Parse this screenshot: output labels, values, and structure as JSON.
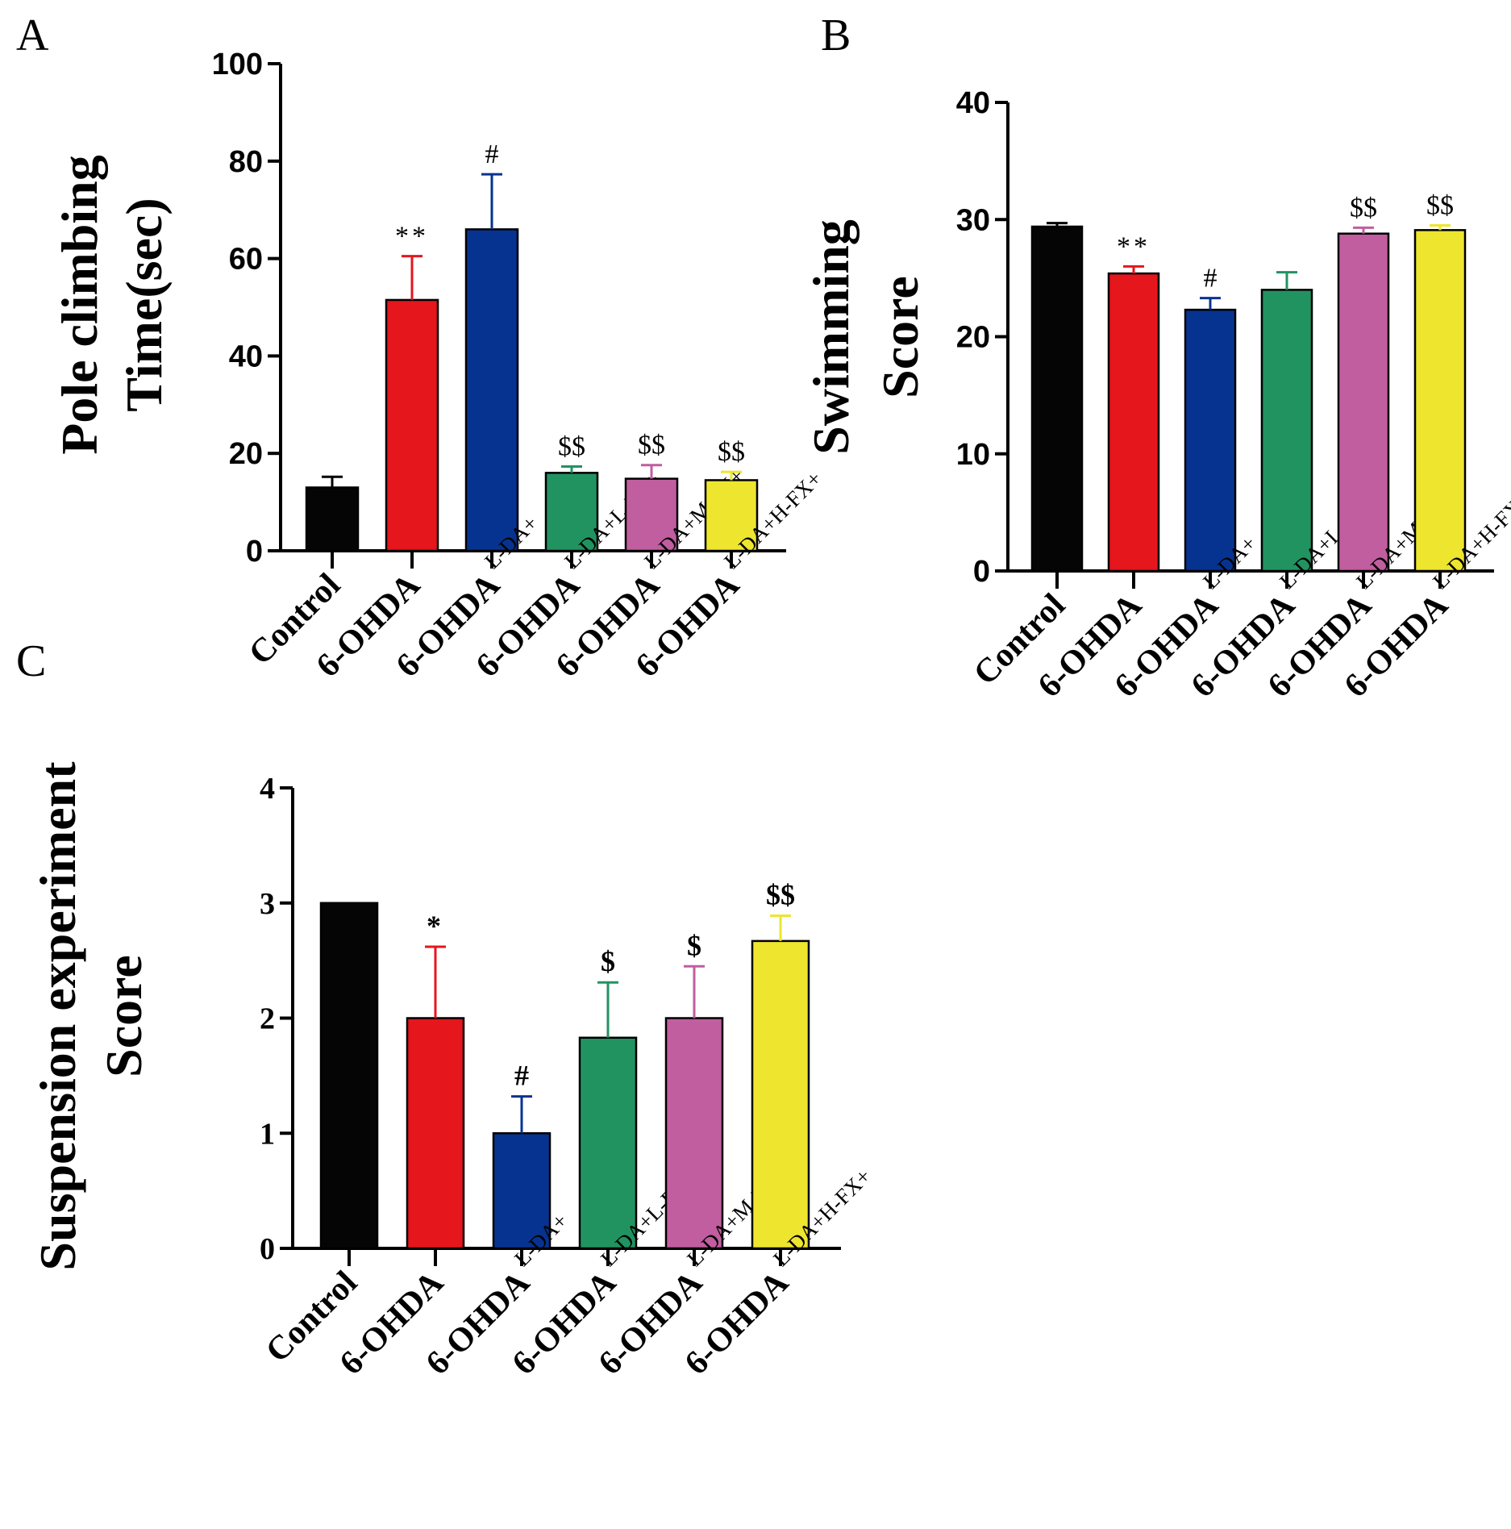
{
  "figure": {
    "panels": [
      "A",
      "B",
      "C"
    ]
  },
  "colors": {
    "Control": "#050505",
    "6-OHDA": "#e5161c",
    "L-DA": "#073390",
    "L-FX": "#219361",
    "M-FX": "#c05e9f",
    "H-FX": "#eee52e"
  },
  "groups": [
    {
      "main": "Control",
      "sup": ""
    },
    {
      "main": "6-OHDA",
      "sup": ""
    },
    {
      "main": "6-OHDA",
      "sup": "L-DA+"
    },
    {
      "main": "6-OHDA",
      "sup": "L-DA+L-FX+"
    },
    {
      "main": "6-OHDA",
      "sup": "L-DA+M-FX+"
    },
    {
      "main": "6-OHDA",
      "sup": "L-DA+H-FX+"
    }
  ],
  "chart_data": [
    {
      "panel": "A",
      "type": "bar",
      "ylabel_lines": [
        "Pole climbing",
        "Time(sec)"
      ],
      "ylim": [
        0,
        100
      ],
      "yticks": [
        0,
        20,
        40,
        60,
        80,
        100
      ],
      "values": [
        13,
        51.5,
        66,
        16,
        14.8,
        14.5
      ],
      "errors": [
        2.2,
        9,
        11.3,
        1.3,
        2.8,
        1.7
      ],
      "annotations": [
        "",
        "**",
        "#",
        "$$",
        "$$",
        "$$"
      ]
    },
    {
      "panel": "B",
      "type": "bar",
      "ylabel_lines": [
        "Swimming",
        "Score"
      ],
      "ylim": [
        0,
        40
      ],
      "yticks": [
        0,
        10,
        20,
        30,
        40
      ],
      "values": [
        29.4,
        25.4,
        22.3,
        24,
        28.8,
        29.1
      ],
      "errors": [
        0.3,
        0.6,
        1,
        1.5,
        0.5,
        0.4
      ],
      "annotations": [
        "",
        "**",
        "#",
        "",
        "$$",
        "$$"
      ]
    },
    {
      "panel": "C",
      "type": "bar",
      "ylabel_lines": [
        "Suspension experiment",
        "Score"
      ],
      "ylim": [
        0,
        4
      ],
      "yticks": [
        0,
        1,
        2,
        3,
        4
      ],
      "values": [
        3,
        2,
        1,
        1.83,
        2,
        2.67
      ],
      "errors": [
        0,
        0.62,
        0.32,
        0.48,
        0.45,
        0.22
      ],
      "annotations": [
        "",
        "*",
        "#",
        "$",
        "$",
        "$$"
      ]
    }
  ]
}
